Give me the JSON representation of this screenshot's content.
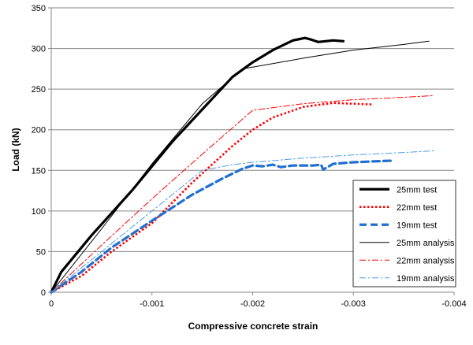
{
  "chart_data": {
    "type": "line",
    "xlabel": "Compressive concrete strain",
    "ylabel": "Load  (kN)",
    "xlim": [
      0,
      -0.004
    ],
    "ylim": [
      0,
      350
    ],
    "x_ticks": [
      "0",
      "-0.001",
      "-0.002",
      "-0.003",
      "-0.004"
    ],
    "x_tick_values": [
      0,
      -0.001,
      -0.002,
      -0.003,
      -0.004
    ],
    "y_ticks": [
      "0",
      "50",
      "100",
      "150",
      "200",
      "250",
      "300",
      "350"
    ],
    "y_tick_values": [
      0,
      50,
      100,
      150,
      200,
      250,
      300,
      350
    ],
    "grid": "horizontal",
    "legend_position": "right",
    "series": [
      {
        "name": "25mm test",
        "color": "#000000",
        "style": "solid-thick",
        "x": [
          0,
          -0.0001,
          -0.0004,
          -0.0008,
          -0.0012,
          -0.0015,
          -0.0018,
          -0.002,
          -0.0022,
          -0.0024,
          -0.00252,
          -0.00258,
          -0.00265,
          -0.0028,
          -0.0029
        ],
        "y": [
          0,
          25,
          70,
          125,
          185,
          225,
          265,
          283,
          298,
          310,
          313,
          311,
          308,
          310,
          309
        ]
      },
      {
        "name": "22mm test",
        "color": "#ff0000",
        "style": "dotted",
        "x": [
          0,
          -0.0003,
          -0.0006,
          -0.001,
          -0.0014,
          -0.0018,
          -0.002,
          -0.0022,
          -0.0025,
          -0.0028,
          -0.003,
          -0.0032
        ],
        "y": [
          0,
          20,
          50,
          85,
          135,
          180,
          200,
          215,
          228,
          233,
          232,
          231
        ]
      },
      {
        "name": "19mm test",
        "color": "#1f6fd0",
        "style": "dashed-thick",
        "x": [
          0,
          -0.0003,
          -0.0006,
          -0.001,
          -0.0014,
          -0.0017,
          -0.0019,
          -0.002,
          -0.0021,
          -0.0022,
          -0.00228,
          -0.0024,
          -0.0026,
          -0.00268,
          -0.0027,
          -0.0028,
          -0.003,
          -0.0032,
          -0.0034
        ],
        "y": [
          0,
          25,
          55,
          88,
          120,
          140,
          152,
          156,
          155,
          157,
          154,
          156,
          156,
          157,
          151,
          158,
          160,
          161,
          162
        ]
      },
      {
        "name": "25mm analysis",
        "color": "#000000",
        "style": "solid-thin",
        "x": [
          0,
          -0.0005,
          -0.001,
          -0.0015,
          -0.0019,
          -0.002,
          -0.0025,
          -0.003,
          -0.0035,
          -0.00375
        ],
        "y": [
          0,
          78,
          158,
          232,
          275,
          277,
          288,
          298,
          305,
          309
        ]
      },
      {
        "name": "22mm analysis",
        "color": "#ff0000",
        "style": "dashdot",
        "x": [
          0,
          -0.0005,
          -0.001,
          -0.0015,
          -0.002,
          -0.0025,
          -0.003,
          -0.0035,
          -0.0038
        ],
        "y": [
          0,
          58,
          115,
          170,
          224,
          232,
          237,
          240,
          242
        ]
      },
      {
        "name": "19mm analysis",
        "color": "#4d9de0",
        "style": "dashdot",
        "x": [
          0,
          -0.0005,
          -0.001,
          -0.0015,
          -0.0018,
          -0.002,
          -0.0025,
          -0.003,
          -0.0035,
          -0.0038
        ],
        "y": [
          0,
          50,
          100,
          150,
          157,
          160,
          165,
          169,
          172,
          174
        ]
      }
    ]
  }
}
